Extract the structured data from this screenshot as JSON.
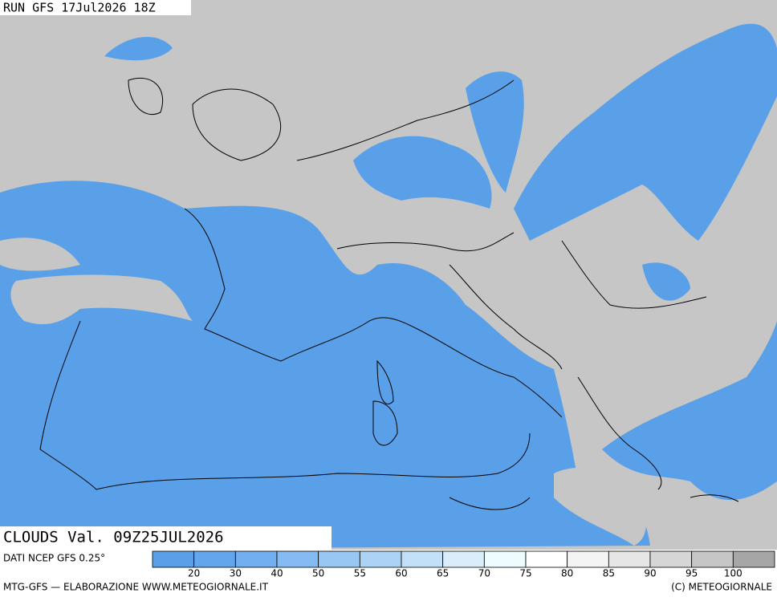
{
  "header": {
    "run": "RUN GFS 17Jul2026 18Z"
  },
  "map": {
    "title": "CLOUDS Val. 09Z25JUL2026"
  },
  "legend": {
    "source": "DATI NCEP GFS 0.25°",
    "colors": [
      "#5aa0e8",
      "#64a6ec",
      "#72aff0",
      "#84bbf2",
      "#98c7f4",
      "#acd3f6",
      "#c2e0f8",
      "#daedfb",
      "#eefcff",
      "#ffffff",
      "#f4f4f4",
      "#e6e6e6",
      "#d6d6d6",
      "#c6c6c6",
      "#a6a6a6"
    ],
    "ticks": [
      20,
      30,
      40,
      50,
      55,
      60,
      65,
      70,
      75,
      80,
      85,
      90,
      95,
      100
    ]
  },
  "footer": {
    "left": "MTG-GFS — ELABORAZIONE WWW.METEOGIORNALE.IT",
    "right": "(C) METEOGIORNALE"
  }
}
